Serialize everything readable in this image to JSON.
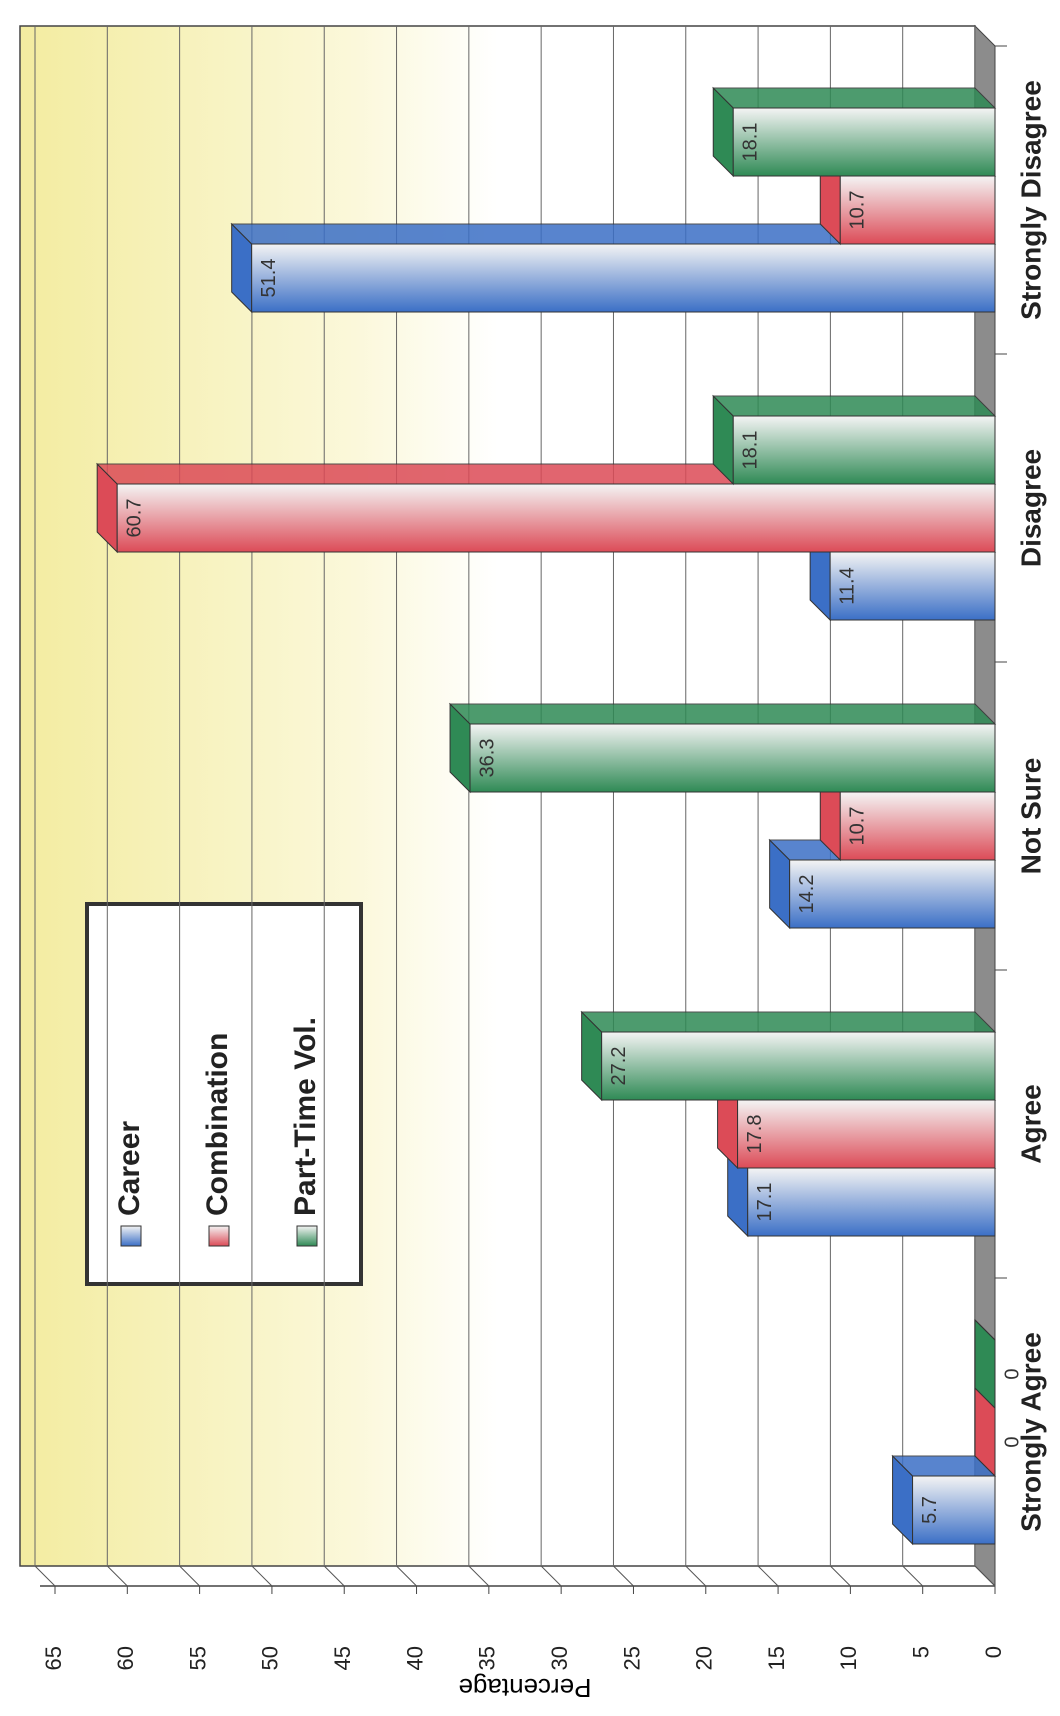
{
  "chart_data": {
    "type": "bar",
    "ylabel": "Percentage",
    "categories": [
      "Strongly Agree",
      "Agree",
      "Not Sure",
      "Disagree",
      "Strongly Disagree"
    ],
    "series": [
      {
        "name": "Career",
        "color": "#3b6fc6",
        "values": [
          5.7,
          17.1,
          14.2,
          11.4,
          51.4
        ]
      },
      {
        "name": "Combination",
        "color": "#dc4b57",
        "values": [
          0,
          17.8,
          10.7,
          60.7,
          10.7
        ]
      },
      {
        "name": "Part-Time Vol.",
        "color": "#2f8a55",
        "values": [
          0,
          27.2,
          36.3,
          18.1,
          18.1
        ]
      }
    ],
    "ylim": [
      0,
      65
    ],
    "yticks": [
      0,
      5,
      10,
      15,
      20,
      25,
      30,
      35,
      40,
      45,
      50,
      55,
      60,
      65
    ],
    "grid": true,
    "legend": "upper left"
  }
}
